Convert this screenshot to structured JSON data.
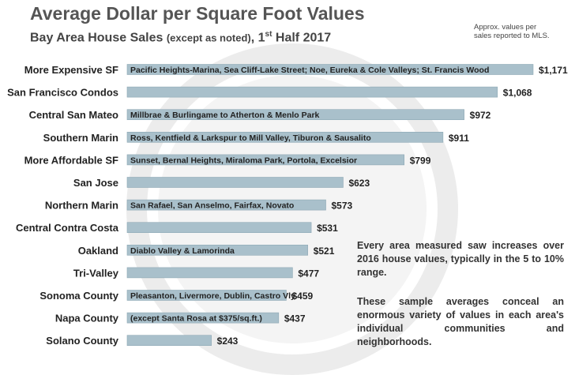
{
  "header": {
    "title": "Average Dollar per Square Foot Values",
    "subtitle_main": "Bay Area House Sales ",
    "subtitle_paren": "(except as noted)",
    "subtitle_suffix": ", 1",
    "subtitle_sup": "st",
    "subtitle_end": " Half 2017",
    "note_line1": "Approx. values per",
    "note_line2": "sales reported to MLS."
  },
  "commentary": {
    "para1": "Every area measured saw increases over 2016 house values, typically in the 5 to 10% range.",
    "para2": "These sample averages conceal an enormous variety of values in each area's individual communities and neighborhoods."
  },
  "colors": {
    "bar": "#a9c0cb",
    "bar_stroke": "#8ea8b5",
    "text": "#222222"
  },
  "chart_data": {
    "type": "bar",
    "orientation": "horizontal",
    "title": "Average Dollar per Square Foot Values",
    "subtitle": "Bay Area House Sales (except as noted), 1st Half 2017",
    "categories": [
      "More Expensive SF",
      "San Francisco Condos",
      "Central San Mateo",
      "Southern Marin",
      "More Affordable SF",
      "San Jose",
      "Northern Marin",
      "Central Contra Costa",
      "Oakland",
      "Tri-Valley",
      "Sonoma County",
      "Napa County",
      "Solano County"
    ],
    "values": [
      1171,
      1068,
      972,
      911,
      799,
      623,
      573,
      531,
      521,
      477,
      459,
      437,
      243
    ],
    "value_labels": [
      "$1,171",
      "$1,068",
      "$972",
      "$911",
      "$799",
      "$623",
      "$573",
      "$531",
      "$521",
      "$477",
      "$459",
      "$437",
      "$243"
    ],
    "bar_texts": [
      "Pacific Heights-Marina, Sea Cliff-Lake Street; Noe, Eureka & Cole Valleys; St. Francis Wood",
      "",
      "Millbrae & Burlingame to Atherton & Menlo Park",
      "Ross, Kentfield & Larkspur to Mill Valley, Tiburon & Sausalito",
      "Sunset, Bernal Heights, Miraloma Park, Portola, Excelsior",
      "",
      "San Rafael, San Anselmo, Fairfax, Novato",
      "",
      "Diablo Valley & Lamorinda",
      "",
      "Pleasanton, Livermore, Dublin, Castro Vly",
      "(except Santa Rosa at $375/sq.ft.)",
      ""
    ],
    "xlim": [
      0,
      1171
    ],
    "grid": false,
    "legend": "none"
  }
}
